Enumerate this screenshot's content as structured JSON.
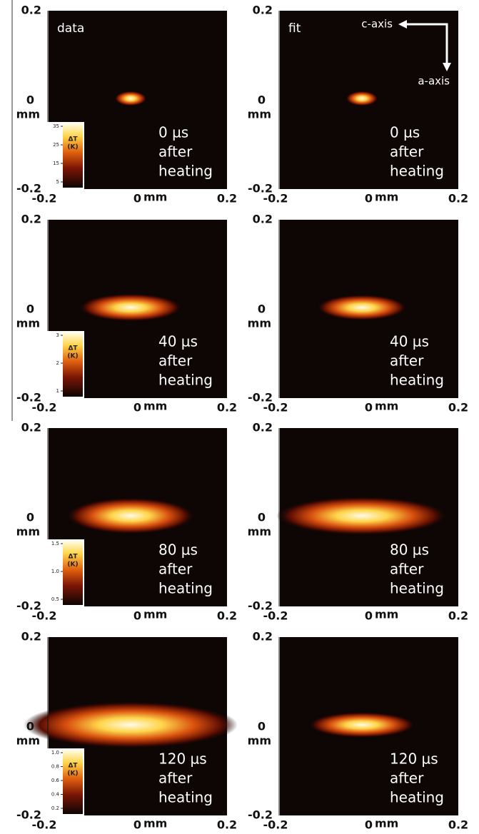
{
  "header": {
    "data_label": "data",
    "fit_label": "fit",
    "c_axis": "c-axis",
    "a_axis": "a-axis"
  },
  "axes": {
    "y_top": "0.2",
    "y_mid": "0",
    "y_unit": "mm",
    "y_bottom": "-0.2",
    "x_left": "-0.2",
    "x_mid": "0",
    "x_unit": "mm",
    "x_right": "0.2"
  },
  "rows": [
    {
      "caption": [
        "0 µs",
        "after",
        "heating"
      ],
      "colorbar": {
        "label": "ΔT",
        "unit": "(K)",
        "ticks": [
          "35",
          "25",
          "15",
          "5"
        ]
      }
    },
    {
      "caption": [
        "40 µs",
        "after",
        "heating"
      ],
      "colorbar": {
        "label": "ΔT",
        "unit": "(K)",
        "ticks": [
          "3",
          "2",
          "1"
        ]
      }
    },
    {
      "caption": [
        "80 µs",
        "after",
        "heating"
      ],
      "colorbar": {
        "label": "ΔT",
        "unit": "(K)",
        "ticks": [
          "1.5",
          "1.0",
          "0.5"
        ]
      }
    },
    {
      "caption": [
        "120 µs",
        "after",
        "heating"
      ],
      "colorbar": {
        "label": "ΔT",
        "unit": "(K)",
        "ticks": [
          "1.0",
          "0.8",
          "0.6",
          "0.4",
          "0.2"
        ]
      }
    }
  ]
}
